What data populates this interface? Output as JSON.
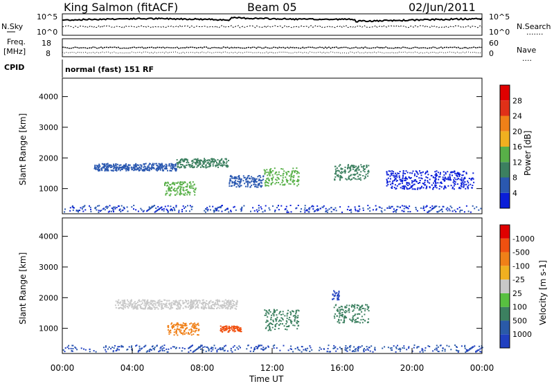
{
  "header": {
    "site": "King Salmon (fitACF)",
    "beam": "Beam 05",
    "date": "02/Jun/2011"
  },
  "noise_panel": {
    "left_label": "N.Sky",
    "right_label": "N.Search",
    "left_ticks": [
      "10^5",
      "10^0"
    ],
    "right_ticks": [
      "10^5",
      "10^0"
    ],
    "right_legend": "......."
  },
  "freq_panel": {
    "left_label_1": "Freq.",
    "left_label_2": "[MHz]",
    "left_ticks": [
      "18",
      "8"
    ],
    "right_label": "Nave",
    "right_ticks": [
      "60",
      "0"
    ],
    "right_legend": "...."
  },
  "cpid": {
    "label": "CPID",
    "value": "normal (fast) 151 RF"
  },
  "x_axis": {
    "ticks": [
      "00:00",
      "04:00",
      "08:00",
      "12:00",
      "16:00",
      "20:00",
      "00:00"
    ],
    "xlabel": "Time UT"
  },
  "chart_data": [
    {
      "type": "heatmap",
      "ylabel": "Slant Range [km]",
      "y_ticks": [
        "1000",
        "2000",
        "3000",
        "4000"
      ],
      "ylim": [
        180,
        4600
      ],
      "xlim_hours": [
        0,
        24
      ],
      "colorbar": {
        "label": "Power [dB]",
        "ticks": [
          "4",
          "8",
          "12",
          "16",
          "20",
          "24",
          "28"
        ],
        "colors": [
          "#0a1ed8",
          "#2a58b0",
          "#3c8060",
          "#58b048",
          "#f0b020",
          "#f08018",
          "#e03018",
          "#e00000"
        ]
      },
      "scatter_regions": [
        {
          "t0": 1.8,
          "t1": 6.5,
          "r": 1720,
          "spread": 120,
          "color_index": 1
        },
        {
          "t0": 5.8,
          "t1": 7.6,
          "r": 1020,
          "spread": 220,
          "color_index": 3
        },
        {
          "t0": 6.5,
          "t1": 9.5,
          "r": 1850,
          "spread": 150,
          "color_index": 2
        },
        {
          "t0": 9.5,
          "t1": 11.5,
          "r": 1250,
          "spread": 200,
          "color_index": 1
        },
        {
          "t0": 11.5,
          "t1": 13.5,
          "r": 1400,
          "spread": 300,
          "color_index": 3
        },
        {
          "t0": 15.5,
          "t1": 17.5,
          "r": 1550,
          "spread": 250,
          "color_index": 2
        },
        {
          "t0": 18.5,
          "t1": 23.5,
          "r": 1300,
          "spread": 300,
          "color_index": 0
        }
      ]
    },
    {
      "type": "heatmap",
      "ylabel": "Slant Range [km]",
      "y_ticks": [
        "1000",
        "2000",
        "3000",
        "4000"
      ],
      "ylim": [
        180,
        4600
      ],
      "xlim_hours": [
        0,
        24
      ],
      "colorbar": {
        "label": "Velocity [m s-1]",
        "ticks": [
          "1000",
          "500",
          "100",
          "25",
          "-25",
          "-100",
          "-500",
          "-1000"
        ],
        "colors": [
          "#2040c0",
          "#2a5aa8",
          "#3c8060",
          "#58c040",
          "#c8c8c8",
          "#f0b020",
          "#f08018",
          "#f05010",
          "#e00000"
        ]
      },
      "scatter_regions": [
        {
          "t0": 3.0,
          "t1": 10.0,
          "r": 1800,
          "spread": 150,
          "color_index": 4
        },
        {
          "t0": 6.0,
          "t1": 7.8,
          "r": 1000,
          "spread": 200,
          "color_index": 6
        },
        {
          "t0": 9.0,
          "t1": 10.2,
          "r": 1000,
          "spread": 100,
          "color_index": 7
        },
        {
          "t0": 11.5,
          "t1": 13.5,
          "r": 1300,
          "spread": 350,
          "color_index": 2
        },
        {
          "t0": 15.5,
          "t1": 17.5,
          "r": 1500,
          "spread": 300,
          "color_index": 2
        },
        {
          "t0": 15.4,
          "t1": 15.8,
          "r": 2100,
          "spread": 150,
          "color_index": 0
        }
      ]
    }
  ]
}
